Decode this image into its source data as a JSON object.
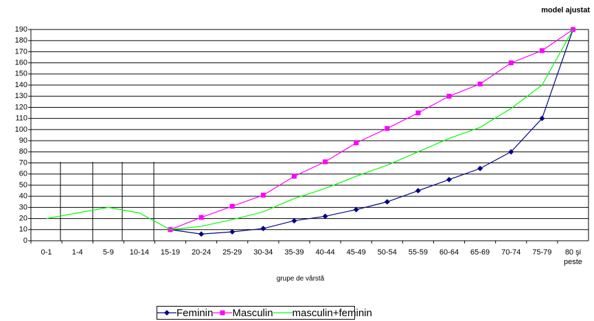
{
  "chart_data": {
    "type": "line",
    "title": "model ajustat",
    "x_label": "grupe de vârstă",
    "categories": [
      "0-1",
      "1-4",
      "5-9",
      "10-14",
      "15-19",
      "20-24",
      "25-29",
      "30-34",
      "35-39",
      "40-44",
      "45-49",
      "50-54",
      "55-59",
      "60-64",
      "65-69",
      "70-74",
      "75-79",
      "80 şi peste"
    ],
    "series": [
      {
        "name": "Feminin",
        "color": "#000080",
        "marker": "diamond",
        "values": [
          null,
          null,
          null,
          null,
          10,
          6,
          8,
          11,
          18,
          22,
          28,
          35,
          45,
          55,
          65,
          80,
          110,
          190
        ]
      },
      {
        "name": "Masculin",
        "color": "#ff00ff",
        "marker": "square",
        "values": [
          null,
          null,
          null,
          null,
          10,
          21,
          31,
          41,
          58,
          71,
          88,
          101,
          115,
          130,
          141,
          160,
          171,
          190
        ]
      },
      {
        "name": "masculin+feminin",
        "color": "#00ff00",
        "marker": null,
        "values": [
          20,
          25,
          30,
          25,
          10,
          13,
          19,
          26,
          38,
          47,
          58,
          68,
          80,
          92,
          102,
          119,
          140,
          190
        ]
      }
    ],
    "ylim": [
      0,
      190
    ],
    "yticks": [
      0,
      10,
      20,
      30,
      40,
      50,
      60,
      70,
      80,
      90,
      100,
      110,
      120,
      130,
      140,
      150,
      160,
      170,
      180,
      190
    ],
    "grid": true
  }
}
